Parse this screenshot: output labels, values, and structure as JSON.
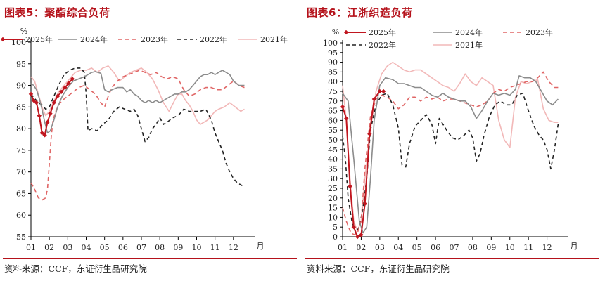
{
  "figures": [
    {
      "title": "图表5：聚酯综合负荷",
      "source": "资料来源：CCF，东证衍生品研究院"
    },
    {
      "title": "图表6：江浙织造负荷",
      "source": "资料来源：CCF，东证衍生品研究院"
    }
  ],
  "chart_data": [
    {
      "type": "line",
      "title": "图表5：聚酯综合负荷",
      "ylabel": "%",
      "xlabel": "月",
      "ylim": [
        55,
        100
      ],
      "yticks": [
        55,
        60,
        65,
        70,
        75,
        80,
        85,
        90,
        95,
        100
      ],
      "xlim": [
        1,
        13
      ],
      "xticks": [
        "01",
        "02",
        "03",
        "04",
        "05",
        "06",
        "07",
        "08",
        "09",
        "10",
        "11",
        "12"
      ],
      "x_unit": "month",
      "grid": false,
      "legend": "top-left",
      "series": [
        {
          "name": "2025年",
          "color": "#c0161f",
          "dash": "solid",
          "marker": "diamond",
          "width": 2,
          "x": [
            1.0,
            1.15,
            1.3,
            1.45,
            1.6,
            1.75,
            1.9,
            2.05,
            2.25,
            2.45,
            2.65,
            2.85,
            3.05,
            3.25
          ],
          "y": [
            88,
            86.5,
            86,
            83,
            79,
            78.5,
            81.5,
            83.5,
            86,
            87.5,
            88.5,
            89.5,
            90.5,
            91.5
          ]
        },
        {
          "name": "2024年",
          "color": "#8c8c8c",
          "dash": "solid",
          "width": 1.6,
          "x": [
            1.0,
            1.15,
            1.3,
            1.45,
            1.6,
            1.75,
            1.9,
            2.05,
            2.25,
            2.45,
            2.7,
            3.0,
            3.3,
            3.6,
            3.9,
            4.1,
            4.3,
            4.5,
            4.8,
            5.0,
            5.2,
            5.4,
            5.7,
            6.0,
            6.2,
            6.4,
            6.6,
            6.8,
            7.0,
            7.2,
            7.4,
            7.6,
            7.8,
            8.0,
            8.2,
            8.4,
            8.6,
            8.8,
            9.0,
            9.2,
            9.4,
            9.6,
            9.8,
            10.0,
            10.2,
            10.4,
            10.6,
            10.8,
            11.0,
            11.2,
            11.4,
            11.6,
            11.8,
            12.0,
            12.3,
            12.6
          ],
          "y": [
            90.5,
            90,
            89,
            87,
            84.5,
            81.5,
            79,
            79.5,
            82,
            85,
            87.5,
            89.5,
            91,
            91.5,
            92,
            92.5,
            93,
            93.2,
            92.8,
            89,
            88.5,
            89,
            89.5,
            89.5,
            88.5,
            89,
            88,
            87.5,
            86.5,
            86,
            86.5,
            86,
            86.5,
            86,
            86.5,
            87,
            87.5,
            88,
            88,
            88.5,
            88.5,
            89,
            90,
            91,
            92,
            92.5,
            92.5,
            93,
            92.5,
            93,
            93.5,
            93,
            92.5,
            91,
            90,
            90
          ]
        },
        {
          "name": "2023年",
          "color": "#e06666",
          "dash": "6,4",
          "width": 1.6,
          "x": [
            1.0,
            1.2,
            1.4,
            1.6,
            1.8,
            1.9,
            2.0,
            2.1,
            2.2,
            2.35,
            2.5,
            2.7,
            3.0,
            3.3,
            3.6,
            3.9,
            4.2,
            4.5,
            4.8,
            5.0,
            5.2,
            5.4,
            5.7,
            6.0,
            6.3,
            6.6,
            6.9,
            7.2,
            7.5,
            7.8,
            8.1,
            8.4,
            8.7,
            9.0,
            9.3,
            9.6,
            9.9,
            10.2,
            10.5,
            10.8,
            11.1,
            11.4,
            11.7,
            12.0,
            12.3,
            12.6
          ],
          "y": [
            67.5,
            66,
            64,
            63.5,
            64,
            66,
            72,
            78,
            82,
            84,
            85.5,
            86.5,
            87.5,
            88.5,
            89.5,
            90,
            89,
            88,
            86,
            85,
            87.5,
            89.5,
            91,
            92,
            92.5,
            93,
            93.5,
            93,
            92.5,
            93,
            92,
            91.5,
            92,
            91.5,
            89,
            87.5,
            88,
            89,
            89.5,
            89.5,
            89,
            89,
            90,
            91,
            90,
            89.5
          ]
        },
        {
          "name": "2022年",
          "color": "#222222",
          "dash": "5,4",
          "width": 1.6,
          "x": [
            1.0,
            1.2,
            1.4,
            1.6,
            1.8,
            2.0,
            2.2,
            2.5,
            2.8,
            3.1,
            3.4,
            3.7,
            3.9,
            4.0,
            4.1,
            4.3,
            4.6,
            4.9,
            5.2,
            5.5,
            5.8,
            6.1,
            6.4,
            6.6,
            6.8,
            7.0,
            7.2,
            7.4,
            7.6,
            7.8,
            8.0,
            8.2,
            8.4,
            8.7,
            9.0,
            9.3,
            9.6,
            9.9,
            10.2,
            10.5,
            10.8,
            11.0,
            11.2,
            11.4,
            11.6,
            11.8,
            12.0,
            12.2,
            12.4,
            12.6
          ],
          "y": [
            88,
            87,
            86,
            85.5,
            84.5,
            85,
            87,
            90,
            92.5,
            93.5,
            94,
            94,
            93,
            88,
            79.5,
            80,
            79.5,
            81,
            82,
            84,
            85,
            84.5,
            84,
            84.5,
            83,
            80,
            77,
            78,
            80,
            81,
            82.5,
            81,
            81.5,
            82.5,
            83,
            84.5,
            84,
            84,
            84,
            84.5,
            82,
            79,
            77,
            75,
            72,
            70,
            68.5,
            67.5,
            67,
            66.5
          ]
        },
        {
          "name": "2021年",
          "color": "#f2b8b8",
          "dash": "solid",
          "width": 1.6,
          "x": [
            1.0,
            1.2,
            1.4,
            1.6,
            1.8,
            2.0,
            2.2,
            2.5,
            2.8,
            3.1,
            3.4,
            3.7,
            4.0,
            4.3,
            4.6,
            4.9,
            5.2,
            5.5,
            5.8,
            6.1,
            6.4,
            6.7,
            7.0,
            7.3,
            7.6,
            7.9,
            8.2,
            8.5,
            8.8,
            9.0,
            9.2,
            9.4,
            9.6,
            9.8,
            10.0,
            10.2,
            10.4,
            10.6,
            10.8,
            11.0,
            11.2,
            11.5,
            11.8,
            12.1,
            12.4,
            12.6
          ],
          "y": [
            92,
            91,
            88,
            85,
            83,
            84,
            86,
            88.5,
            90,
            91.5,
            93,
            93.5,
            93.5,
            94,
            93,
            94,
            94.5,
            93,
            91,
            92,
            93,
            93.5,
            94,
            93,
            91.5,
            89,
            86,
            84,
            86.5,
            88,
            88,
            86.5,
            85.5,
            84,
            82,
            81,
            81.5,
            82,
            83,
            84,
            84.5,
            85,
            86,
            85,
            84,
            84.5
          ]
        }
      ]
    },
    {
      "type": "line",
      "title": "图表6：江浙织造负荷",
      "ylabel": "%",
      "xlabel": "月",
      "ylim": [
        0,
        100
      ],
      "yticks": [
        0,
        5,
        10,
        15,
        20,
        25,
        30,
        35,
        40,
        45,
        50,
        55,
        60,
        65,
        70,
        75,
        80,
        85,
        90,
        95,
        100
      ],
      "xlim": [
        1,
        13
      ],
      "xticks": [
        "01",
        "02",
        "03",
        "04",
        "05",
        "06",
        "07",
        "08",
        "09",
        "10",
        "11",
        "12"
      ],
      "x_unit": "month",
      "grid": false,
      "legend": "top-left",
      "series": [
        {
          "name": "2025年",
          "color": "#c0161f",
          "dash": "solid",
          "marker": "diamond",
          "width": 2,
          "x": [
            1.0,
            1.2,
            1.4,
            1.6,
            1.8,
            2.0,
            2.2,
            2.45,
            2.7,
            3.0,
            3.2
          ],
          "y": [
            67,
            61,
            26,
            5,
            0,
            1,
            17,
            53,
            71,
            75,
            75
          ]
        },
        {
          "name": "2024年",
          "color": "#8c8c8c",
          "dash": "solid",
          "width": 1.6,
          "x": [
            1.0,
            1.3,
            1.6,
            1.9,
            2.1,
            2.3,
            2.5,
            2.7,
            3.0,
            3.3,
            3.7,
            4.0,
            4.3,
            4.6,
            4.9,
            5.2,
            5.5,
            5.8,
            6.1,
            6.4,
            6.7,
            7.0,
            7.3,
            7.6,
            7.9,
            8.2,
            8.5,
            8.8,
            9.1,
            9.4,
            9.7,
            10.0,
            10.3,
            10.5,
            10.8,
            11.1,
            11.4,
            11.7,
            12.0,
            12.3,
            12.6
          ],
          "y": [
            74,
            70,
            40,
            8,
            2,
            5,
            30,
            60,
            78,
            82,
            81,
            79,
            79,
            78,
            77,
            77,
            75,
            73,
            72,
            74,
            72,
            71,
            70,
            70,
            67,
            61,
            65,
            70,
            74,
            73,
            74,
            73,
            76,
            83,
            82,
            82,
            80,
            75,
            70,
            68,
            71
          ]
        },
        {
          "name": "2023年",
          "color": "#e06666",
          "dash": "6,4",
          "width": 1.6,
          "x": [
            1.0,
            1.2,
            1.4,
            1.6,
            1.8,
            2.0,
            2.2,
            2.5,
            2.8,
            3.1,
            3.4,
            3.7,
            4.0,
            4.3,
            4.6,
            4.9,
            5.2,
            5.5,
            5.8,
            6.1,
            6.4,
            6.7,
            7.0,
            7.3,
            7.6,
            7.9,
            8.2,
            8.5,
            8.8,
            9.1,
            9.4,
            9.7,
            10.0,
            10.3,
            10.6,
            10.9,
            11.2,
            11.5,
            11.8,
            12.1,
            12.4,
            12.6
          ],
          "y": [
            15,
            8,
            3,
            1,
            2,
            8,
            35,
            62,
            71,
            73,
            72,
            70,
            66,
            68,
            72,
            72,
            70,
            72,
            71,
            72,
            70,
            71,
            71,
            70,
            69,
            68,
            67,
            68,
            70,
            74,
            76,
            75,
            77,
            78,
            79,
            80,
            80,
            82,
            85,
            80,
            77,
            77
          ]
        },
        {
          "name": "2022年",
          "color": "#222222",
          "dash": "5,4",
          "width": 1.6,
          "x": [
            1.0,
            1.15,
            1.3,
            1.5,
            1.7,
            1.9,
            2.1,
            2.3,
            2.5,
            2.8,
            3.1,
            3.4,
            3.7,
            4.0,
            4.2,
            4.4,
            4.6,
            4.9,
            5.2,
            5.5,
            5.8,
            6.0,
            6.2,
            6.4,
            6.6,
            6.9,
            7.2,
            7.5,
            7.8,
            8.0,
            8.2,
            8.4,
            8.6,
            8.9,
            9.2,
            9.5,
            9.8,
            10.1,
            10.4,
            10.7,
            11.0,
            11.3,
            11.6,
            11.8,
            12.0,
            12.2,
            12.4,
            12.6
          ],
          "y": [
            52,
            40,
            20,
            8,
            2,
            5,
            15,
            30,
            55,
            68,
            73,
            74,
            68,
            56,
            37,
            36,
            48,
            57,
            60,
            63,
            58,
            48,
            61,
            58,
            55,
            51,
            50,
            52,
            55,
            51,
            39,
            43,
            52,
            62,
            68,
            70,
            68,
            68,
            73,
            74,
            65,
            57,
            52,
            50,
            45,
            35,
            45,
            58
          ]
        },
        {
          "name": "2021年",
          "color": "#f2b8b8",
          "dash": "solid",
          "width": 1.6,
          "x": [
            1.0,
            1.2,
            1.4,
            1.6,
            1.8,
            2.0,
            2.2,
            2.5,
            2.8,
            3.1,
            3.4,
            3.7,
            4.0,
            4.3,
            4.6,
            4.9,
            5.2,
            5.5,
            5.8,
            6.1,
            6.4,
            6.7,
            7.0,
            7.3,
            7.6,
            7.9,
            8.2,
            8.5,
            8.8,
            9.1,
            9.4,
            9.7,
            10.0,
            10.3,
            10.6,
            10.9,
            11.2,
            11.5,
            11.8,
            12.1,
            12.4,
            12.6
          ],
          "y": [
            78,
            60,
            30,
            8,
            3,
            8,
            30,
            55,
            75,
            84,
            88,
            90,
            88,
            86,
            85,
            86,
            86,
            84,
            82,
            80,
            78,
            77,
            75,
            79,
            84,
            80,
            78,
            82,
            80,
            78,
            60,
            50,
            46,
            72,
            80,
            79,
            80,
            81,
            66,
            60,
            59,
            59
          ]
        }
      ]
    }
  ]
}
